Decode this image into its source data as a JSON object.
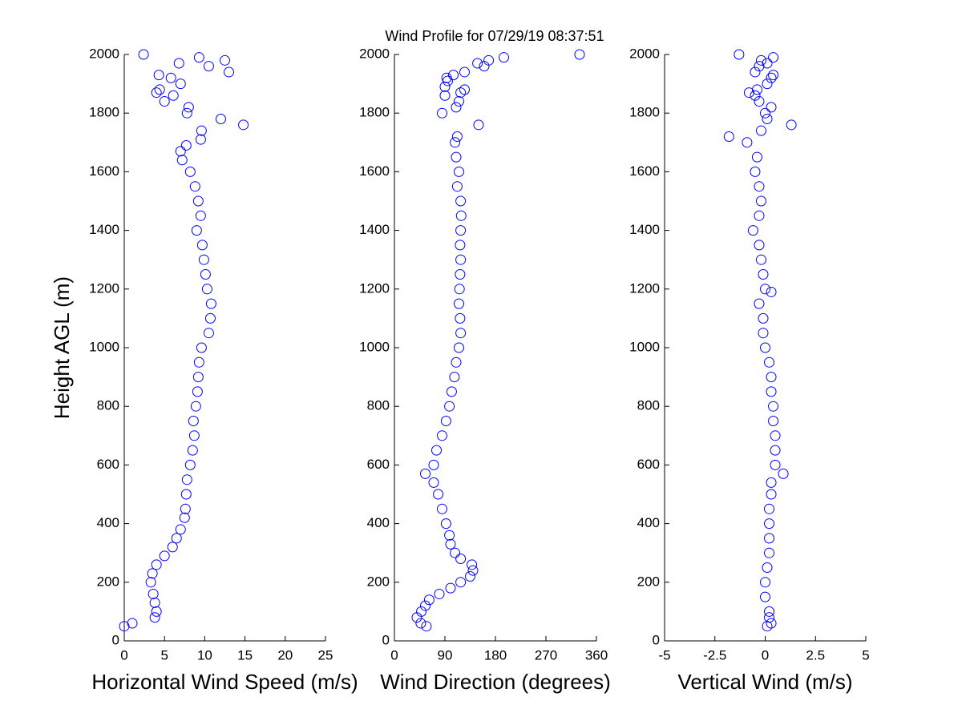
{
  "chart_data": [
    {
      "type": "scatter",
      "title": "Wind Profile for  07/29/19 08:37:51",
      "xlabel": "Horizontal Wind Speed (m/s)",
      "ylabel": "Height AGL (m)",
      "color": "#0000ff",
      "xlim": [
        0,
        25
      ],
      "xticks": [
        0,
        5,
        10,
        15,
        20,
        25
      ],
      "ylim": [
        0,
        2000
      ],
      "yticks": [
        0,
        200,
        400,
        600,
        800,
        1000,
        1200,
        1400,
        1600,
        1800,
        2000
      ],
      "x": [
        0,
        1,
        3.8,
        4,
        3.8,
        3.6,
        3.3,
        3.5,
        4,
        5,
        6,
        6.5,
        7,
        7.5,
        7.6,
        7.7,
        7.8,
        8.2,
        8.5,
        8.7,
        8.6,
        8.9,
        9.1,
        9.2,
        9.3,
        9.6,
        10.5,
        10.7,
        10.8,
        10.3,
        10.1,
        9.9,
        9.7,
        9,
        9.5,
        9.2,
        8.8,
        8.2,
        7.2,
        7,
        7.7,
        9.5,
        9.6,
        14.8,
        12,
        7.8,
        8,
        5,
        6.1,
        4,
        4.4,
        7,
        5.8,
        4.3,
        13,
        10.5,
        6.8,
        12.5,
        9.3,
        2.4
      ],
      "values": [
        50,
        60,
        80,
        100,
        130,
        160,
        200,
        230,
        260,
        290,
        320,
        350,
        380,
        420,
        450,
        500,
        550,
        600,
        650,
        700,
        750,
        800,
        850,
        900,
        950,
        1000,
        1050,
        1100,
        1150,
        1200,
        1250,
        1300,
        1350,
        1400,
        1450,
        1500,
        1550,
        1600,
        1640,
        1670,
        1690,
        1710,
        1740,
        1760,
        1780,
        1800,
        1820,
        1840,
        1860,
        1870,
        1880,
        1900,
        1920,
        1930,
        1940,
        1960,
        1970,
        1980,
        1990,
        2000
      ]
    },
    {
      "type": "scatter",
      "xlabel": "Wind Direction (degrees)",
      "color": "#0000ff",
      "xlim": [
        0,
        360
      ],
      "xticks": [
        0,
        90,
        180,
        270,
        360
      ],
      "ylim": [
        0,
        2000
      ],
      "yticks": [
        0,
        200,
        400,
        600,
        800,
        1000,
        1200,
        1400,
        1600,
        1800,
        2000
      ],
      "x": [
        57,
        47,
        40,
        48,
        55,
        62,
        80,
        100,
        118,
        135,
        140,
        138,
        118,
        108,
        100,
        98,
        92,
        85,
        78,
        70,
        55,
        70,
        75,
        85,
        92,
        98,
        102,
        107,
        110,
        115,
        118,
        117,
        115,
        116,
        117,
        118,
        117,
        118,
        119,
        118,
        112,
        115,
        110,
        108,
        112,
        150,
        85,
        110,
        115,
        90,
        118,
        125,
        90,
        95,
        93,
        105,
        125,
        160,
        148,
        168,
        195,
        330
      ],
      "values": [
        50,
        60,
        80,
        100,
        120,
        140,
        160,
        180,
        200,
        220,
        240,
        260,
        280,
        300,
        330,
        360,
        400,
        450,
        500,
        540,
        570,
        600,
        650,
        700,
        750,
        800,
        850,
        900,
        950,
        1000,
        1050,
        1100,
        1150,
        1200,
        1250,
        1300,
        1350,
        1400,
        1450,
        1500,
        1550,
        1600,
        1650,
        1700,
        1720,
        1760,
        1800,
        1820,
        1840,
        1860,
        1870,
        1880,
        1890,
        1910,
        1920,
        1930,
        1940,
        1960,
        1970,
        1980,
        1990,
        2000
      ]
    },
    {
      "type": "scatter",
      "xlabel": "Vertical Wind (m/s)",
      "color": "#0000ff",
      "xlim": [
        -5,
        5
      ],
      "xticks": [
        -5,
        -2.5,
        0,
        2.5,
        5
      ],
      "ylim": [
        0,
        2000
      ],
      "yticks": [
        0,
        200,
        400,
        600,
        800,
        1000,
        1200,
        1400,
        1600,
        1800,
        2000
      ],
      "x": [
        0.1,
        0.3,
        0.2,
        0.2,
        0,
        0,
        0.1,
        0.2,
        0.2,
        0.2,
        0.2,
        0.3,
        0.3,
        0.9,
        0.5,
        0.5,
        0.5,
        0.4,
        0.4,
        0.3,
        0.3,
        0.2,
        0,
        -0.1,
        -0.1,
        -0.3,
        0.3,
        0,
        -0.1,
        -0.2,
        -0.3,
        -0.6,
        -0.3,
        -0.2,
        -0.3,
        -0.5,
        -0.4,
        -0.9,
        -1.8,
        -0.2,
        1.3,
        0.1,
        0,
        0.3,
        -0.3,
        -0.5,
        -0.8,
        -0.4,
        0.1,
        0.3,
        0.4,
        -0.5,
        -0.3,
        0.1,
        -0.2,
        0.4,
        -1.3
      ],
      "values": [
        50,
        60,
        80,
        100,
        150,
        200,
        250,
        300,
        350,
        400,
        450,
        500,
        540,
        570,
        600,
        650,
        700,
        750,
        800,
        850,
        900,
        950,
        1000,
        1050,
        1100,
        1150,
        1190,
        1200,
        1250,
        1300,
        1350,
        1400,
        1450,
        1500,
        1550,
        1600,
        1650,
        1700,
        1720,
        1740,
        1760,
        1780,
        1800,
        1820,
        1840,
        1860,
        1870,
        1880,
        1900,
        1920,
        1930,
        1940,
        1960,
        1970,
        1980,
        1990,
        2000
      ]
    }
  ]
}
